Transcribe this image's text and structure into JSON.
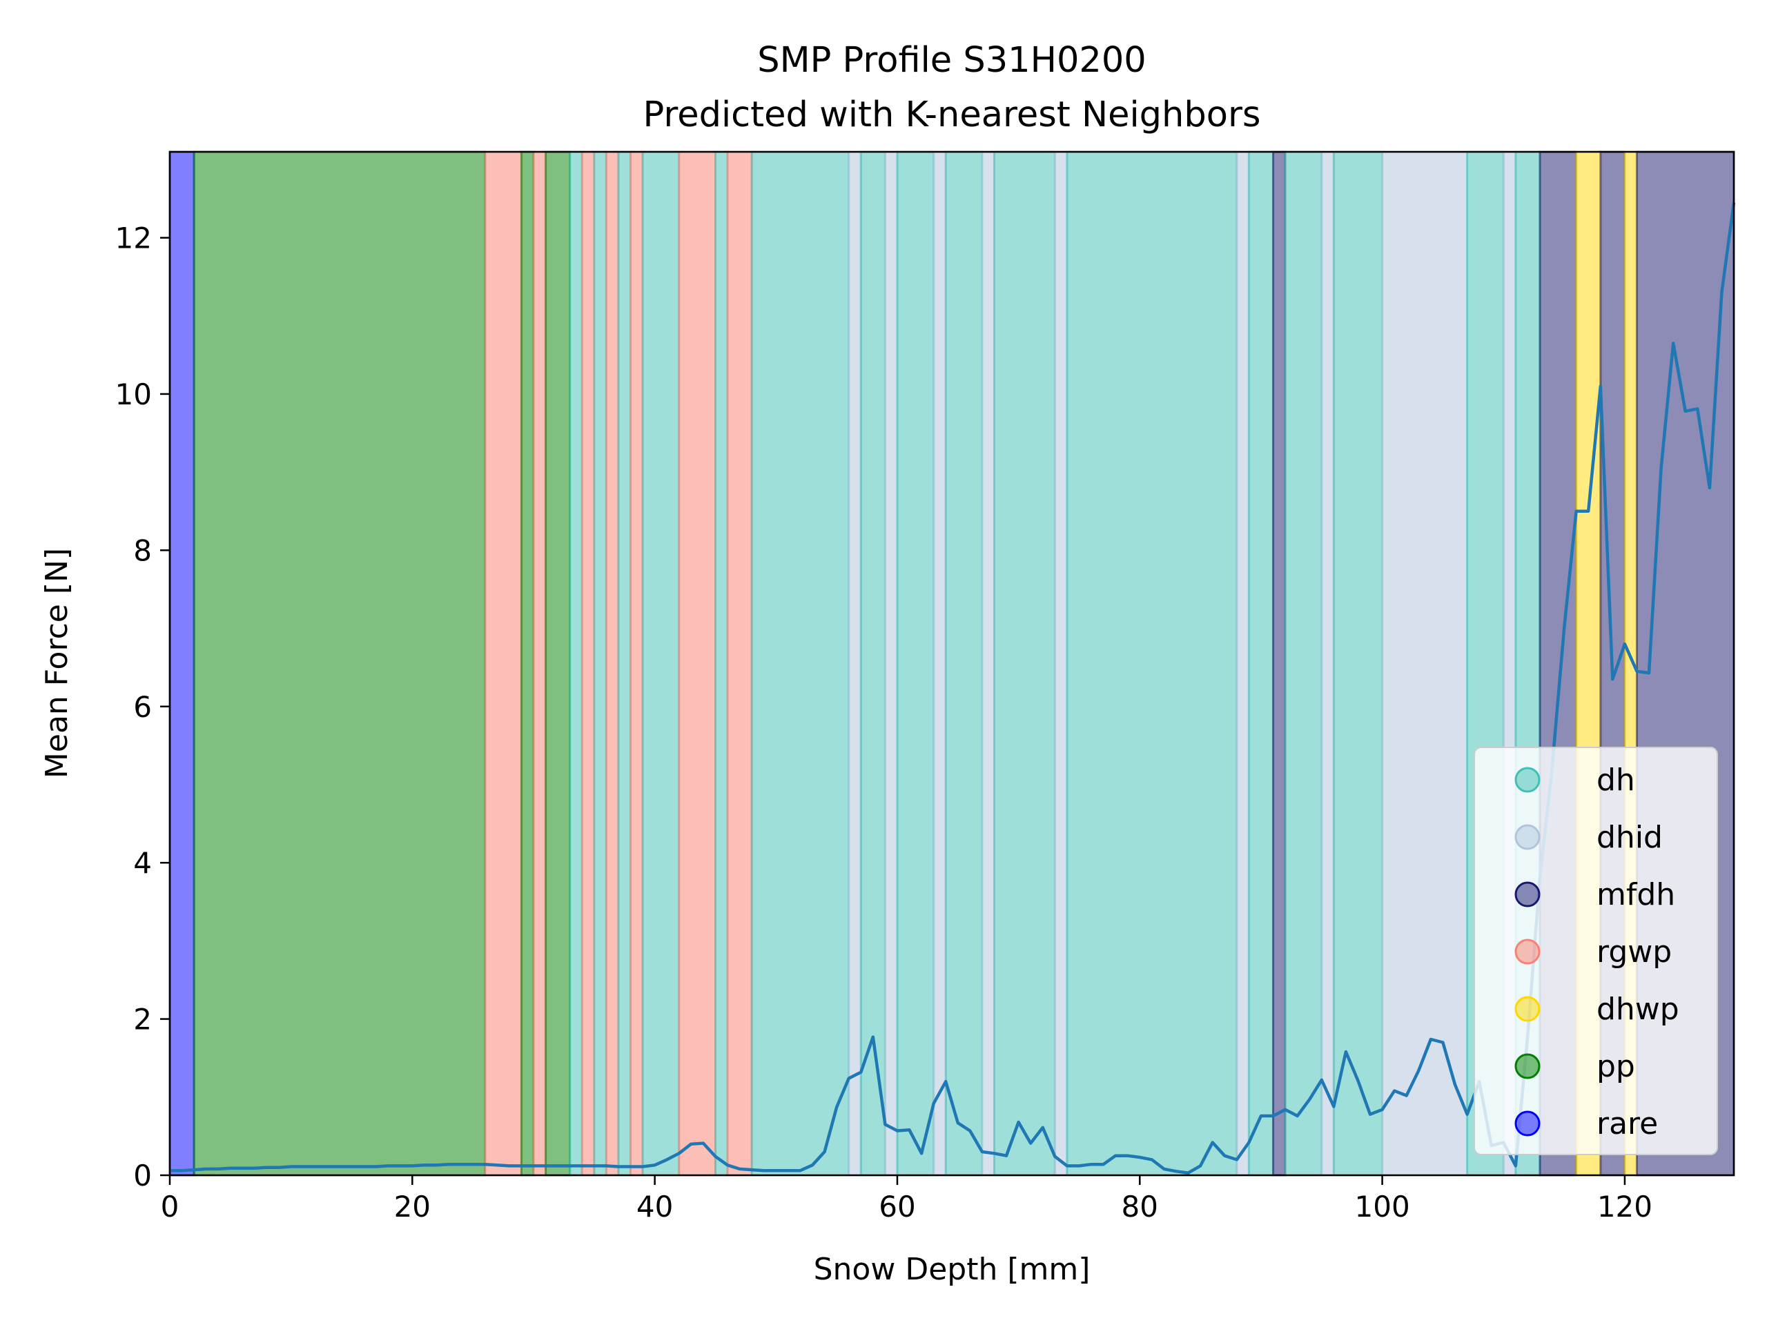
{
  "chart_data": {
    "type": "line",
    "title": "SMP Profile S31H0200",
    "subtitle": "Predicted with K-nearest Neighbors",
    "xlabel": "Snow Depth [mm]",
    "ylabel": "Mean Force [N]",
    "xlim": [
      0,
      129
    ],
    "ylim": [
      0,
      13.1
    ],
    "xticks": [
      "0",
      "20",
      "40",
      "60",
      "80",
      "100",
      "120"
    ],
    "yticks": [
      "0",
      "2",
      "4",
      "6",
      "8",
      "10",
      "12"
    ],
    "grid": false,
    "legend_position": "lower-right",
    "classes": [
      {
        "name": "dh",
        "color": "#40bfb4"
      },
      {
        "name": "dhid",
        "color": "#b0c4de"
      },
      {
        "name": "mfdh",
        "color": "#191970"
      },
      {
        "name": "rgwp",
        "color": "#fa8072"
      },
      {
        "name": "dhwp",
        "color": "#ffd700"
      },
      {
        "name": "pp",
        "color": "#008000"
      },
      {
        "name": "rare",
        "color": "#0000ff"
      }
    ],
    "layers": [
      {
        "from": 0,
        "to": 2,
        "label": "rare"
      },
      {
        "from": 2,
        "to": 26,
        "label": "pp"
      },
      {
        "from": 26,
        "to": 29,
        "label": "rgwp"
      },
      {
        "from": 29,
        "to": 30,
        "label": "pp"
      },
      {
        "from": 30,
        "to": 31,
        "label": "rgwp"
      },
      {
        "from": 31,
        "to": 33,
        "label": "pp"
      },
      {
        "from": 33,
        "to": 34,
        "label": "dh"
      },
      {
        "from": 34,
        "to": 35,
        "label": "rgwp"
      },
      {
        "from": 35,
        "to": 36,
        "label": "dh"
      },
      {
        "from": 36,
        "to": 37,
        "label": "rgwp"
      },
      {
        "from": 37,
        "to": 38,
        "label": "dh"
      },
      {
        "from": 38,
        "to": 39,
        "label": "rgwp"
      },
      {
        "from": 39,
        "to": 42,
        "label": "dh"
      },
      {
        "from": 42,
        "to": 45,
        "label": "rgwp"
      },
      {
        "from": 45,
        "to": 46,
        "label": "dh"
      },
      {
        "from": 46,
        "to": 48,
        "label": "rgwp"
      },
      {
        "from": 48,
        "to": 56,
        "label": "dh"
      },
      {
        "from": 56,
        "to": 57,
        "label": "dhid"
      },
      {
        "from": 57,
        "to": 59,
        "label": "dh"
      },
      {
        "from": 59,
        "to": 60,
        "label": "dhid"
      },
      {
        "from": 60,
        "to": 63,
        "label": "dh"
      },
      {
        "from": 63,
        "to": 64,
        "label": "dhid"
      },
      {
        "from": 64,
        "to": 67,
        "label": "dh"
      },
      {
        "from": 67,
        "to": 68,
        "label": "dhid"
      },
      {
        "from": 68,
        "to": 73,
        "label": "dh"
      },
      {
        "from": 73,
        "to": 74,
        "label": "dhid"
      },
      {
        "from": 74,
        "to": 88,
        "label": "dh"
      },
      {
        "from": 88,
        "to": 89,
        "label": "dhid"
      },
      {
        "from": 89,
        "to": 91,
        "label": "dh"
      },
      {
        "from": 91,
        "to": 92,
        "label": "mfdh"
      },
      {
        "from": 92,
        "to": 95,
        "label": "dh"
      },
      {
        "from": 95,
        "to": 96,
        "label": "dhid"
      },
      {
        "from": 96,
        "to": 100,
        "label": "dh"
      },
      {
        "from": 100,
        "to": 107,
        "label": "dhid"
      },
      {
        "from": 107,
        "to": 110,
        "label": "dh"
      },
      {
        "from": 110,
        "to": 111,
        "label": "dhid"
      },
      {
        "from": 111,
        "to": 113,
        "label": "dh"
      },
      {
        "from": 113,
        "to": 116,
        "label": "mfdh"
      },
      {
        "from": 116,
        "to": 118,
        "label": "dhwp"
      },
      {
        "from": 118,
        "to": 120,
        "label": "mfdh"
      },
      {
        "from": 120,
        "to": 121,
        "label": "dhwp"
      },
      {
        "from": 121,
        "to": 129,
        "label": "mfdh"
      }
    ],
    "series": [
      {
        "x": [
          0,
          1,
          2,
          3,
          4,
          5,
          6,
          7,
          8,
          9,
          10,
          11,
          12,
          13,
          14,
          15,
          16,
          17,
          18,
          19,
          20,
          21,
          22,
          23,
          24,
          25,
          26,
          27,
          28,
          29,
          30,
          31,
          32,
          33,
          34,
          35,
          36,
          37,
          38,
          39,
          40,
          41,
          42,
          43,
          44,
          45,
          46,
          47,
          48,
          49,
          50,
          51,
          52,
          53,
          54,
          55,
          56,
          57,
          58,
          59,
          60,
          61,
          62,
          63,
          64,
          65,
          66,
          67,
          68,
          69,
          70,
          71,
          72,
          73,
          74,
          75,
          76,
          77,
          78,
          79,
          80,
          81,
          82,
          83,
          84,
          85,
          86,
          87,
          88,
          89,
          90,
          91,
          92,
          93,
          94,
          95,
          96,
          97,
          98,
          99,
          100,
          101,
          102,
          103,
          104,
          105,
          106,
          107,
          108,
          109,
          110,
          111,
          112,
          113,
          114,
          115,
          116,
          117,
          118,
          119,
          120,
          121,
          122,
          123,
          124,
          125,
          126,
          127,
          128,
          129
        ],
        "y": [
          0.06,
          0.06,
          0.07,
          0.08,
          0.08,
          0.09,
          0.09,
          0.09,
          0.1,
          0.1,
          0.11,
          0.11,
          0.11,
          0.11,
          0.11,
          0.11,
          0.11,
          0.11,
          0.12,
          0.12,
          0.12,
          0.13,
          0.13,
          0.14,
          0.14,
          0.14,
          0.14,
          0.13,
          0.12,
          0.12,
          0.12,
          0.12,
          0.12,
          0.12,
          0.12,
          0.12,
          0.12,
          0.11,
          0.11,
          0.11,
          0.13,
          0.2,
          0.28,
          0.4,
          0.41,
          0.24,
          0.13,
          0.08,
          0.07,
          0.06,
          0.06,
          0.06,
          0.06,
          0.13,
          0.3,
          0.87,
          1.24,
          1.32,
          1.77,
          0.65,
          0.57,
          0.58,
          0.28,
          0.92,
          1.2,
          0.67,
          0.57,
          0.3,
          0.28,
          0.25,
          0.68,
          0.41,
          0.61,
          0.24,
          0.12,
          0.12,
          0.14,
          0.14,
          0.25,
          0.25,
          0.23,
          0.2,
          0.08,
          0.05,
          0.03,
          0.12,
          0.42,
          0.25,
          0.2,
          0.42,
          0.76,
          0.76,
          0.84,
          0.76,
          0.97,
          1.22,
          0.88,
          1.58,
          1.21,
          0.78,
          0.84,
          1.08,
          1.02,
          1.34,
          1.74,
          1.7,
          1.16,
          0.78,
          1.2,
          0.38,
          0.42,
          0.12,
          1.8,
          3.8,
          5.2,
          7.0,
          8.5,
          8.5,
          10.1,
          6.35,
          6.8,
          6.45,
          6.43,
          9.05,
          10.65,
          9.78,
          9.81,
          8.8,
          11.3,
          12.45
        ]
      }
    ]
  }
}
